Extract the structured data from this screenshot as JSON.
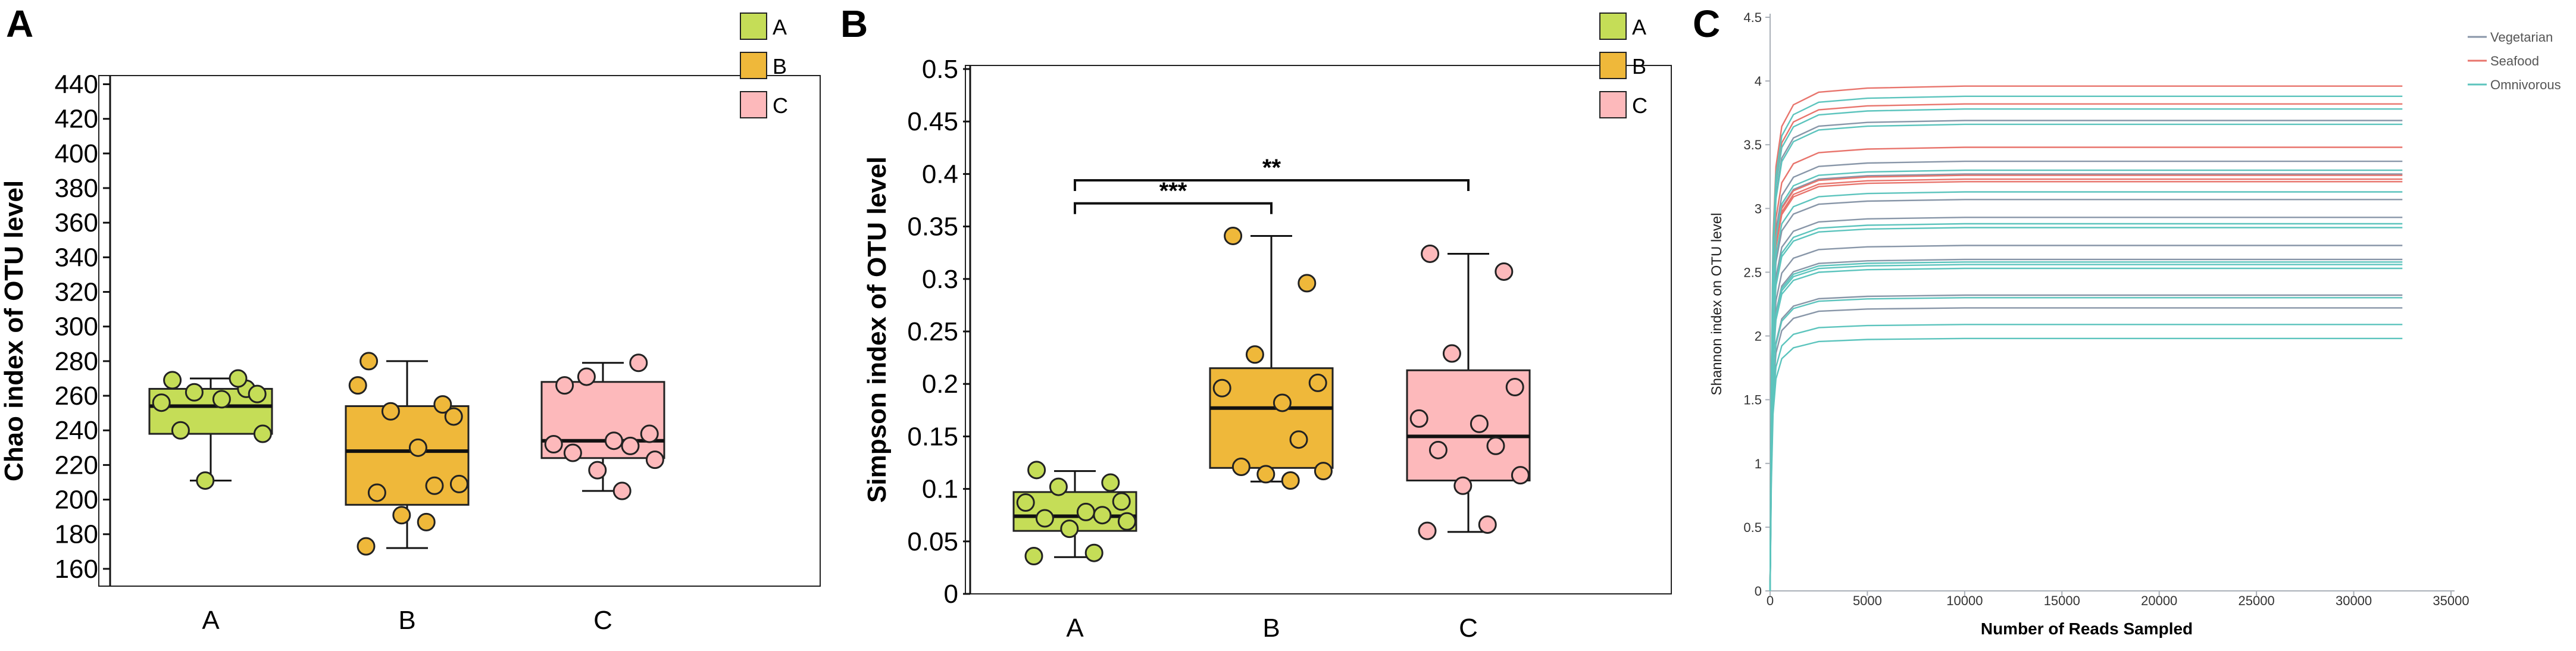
{
  "colors": {
    "A": "#c5dd57",
    "B": "#efb83a",
    "C": "#fdb9bb",
    "vegetarian": "#8896a8",
    "seafood": "#e8746c",
    "omnivorous": "#5cc4bd"
  },
  "chart_data": [
    {
      "panel": "A",
      "type": "box",
      "ylabel": "Chao index of OTU level",
      "categories": [
        "A",
        "B",
        "C"
      ],
      "yticks": [
        160,
        180,
        200,
        220,
        240,
        260,
        280,
        300,
        320,
        340,
        360,
        380,
        400,
        420,
        440
      ],
      "ylim": [
        150,
        445
      ],
      "legend": [
        "A",
        "B",
        "C"
      ],
      "legend_position": "top-right",
      "boxes": [
        {
          "group": "A",
          "whisker_low": 211,
          "q1": 238,
          "median": 254,
          "q3": 264,
          "whisker_high": 270
        },
        {
          "group": "B",
          "whisker_low": 172,
          "q1": 197,
          "median": 228,
          "q3": 254,
          "whisker_high": 280
        },
        {
          "group": "C",
          "whisker_low": 205,
          "q1": 224,
          "median": 234,
          "q3": 268,
          "whisker_high": 279
        }
      ],
      "points": {
        "A": [
          269,
          264,
          262,
          261,
          256,
          258,
          270,
          240,
          238,
          211
        ],
        "B": [
          280,
          255,
          251,
          248,
          266,
          230,
          208,
          204,
          209,
          191,
          187,
          173
        ],
        "C": [
          266,
          279,
          271,
          238,
          232,
          234,
          231,
          227,
          223,
          217,
          205
        ]
      }
    },
    {
      "panel": "B",
      "type": "box",
      "ylabel": "Simpson index of OTU level",
      "categories": [
        "A",
        "B",
        "C"
      ],
      "yticks": [
        "0",
        "0.05",
        "0.1",
        "0.15",
        "0.2",
        "0.25",
        "0.3",
        "0.35",
        "0.4",
        "0.45",
        "0.5"
      ],
      "ylim": [
        0,
        0.5
      ],
      "legend": [
        "A",
        "B",
        "C"
      ],
      "legend_position": "top-right",
      "significance": [
        {
          "from": "A",
          "to": "B",
          "label": "***",
          "y": 0.372
        },
        {
          "from": "A",
          "to": "C",
          "label": "**",
          "y": 0.394
        }
      ],
      "boxes": [
        {
          "group": "A",
          "whisker_low": 0.035,
          "q1": 0.06,
          "median": 0.074,
          "q3": 0.097,
          "whisker_high": 0.117
        },
        {
          "group": "B",
          "whisker_low": 0.107,
          "q1": 0.12,
          "median": 0.177,
          "q3": 0.215,
          "whisker_high": 0.341
        },
        {
          "group": "C",
          "whisker_low": 0.059,
          "q1": 0.108,
          "median": 0.15,
          "q3": 0.213,
          "whisker_high": 0.324
        }
      ],
      "points": {
        "A": [
          0.118,
          0.106,
          0.102,
          0.088,
          0.087,
          0.078,
          0.075,
          0.072,
          0.069,
          0.062,
          0.039,
          0.036
        ],
        "B": [
          0.341,
          0.296,
          0.228,
          0.201,
          0.196,
          0.182,
          0.147,
          0.121,
          0.117,
          0.114,
          0.108
        ],
        "C": [
          0.324,
          0.307,
          0.229,
          0.197,
          0.167,
          0.162,
          0.141,
          0.137,
          0.113,
          0.103,
          0.066,
          0.06
        ]
      }
    },
    {
      "panel": "C",
      "type": "line",
      "xlabel": "Number of Reads Sampled",
      "ylabel": "Shannon index on OTU level",
      "xlim": [
        0,
        35000
      ],
      "ylim": [
        0,
        4.5
      ],
      "xticks": [
        "0",
        "5000",
        "10000",
        "15000",
        "20000",
        "25000",
        "30000",
        "35000"
      ],
      "yticks": [
        "0",
        "0.5",
        "1",
        "1.5",
        "2",
        "2.5",
        "3",
        "3.5",
        "4",
        "4.5"
      ],
      "legend_position": "top-right",
      "x_end": 32500,
      "series": [
        {
          "name": "Vegetarian",
          "color_key": "vegetarian",
          "plateaus": [
            3.69,
            3.37,
            3.27,
            3.07,
            2.93,
            2.71,
            2.6,
            2.32,
            2.22
          ]
        },
        {
          "name": "Seafood",
          "color_key": "seafood",
          "plateaus": [
            3.96,
            3.82,
            3.48,
            3.26,
            3.23,
            3.21
          ]
        },
        {
          "name": "Omnivorous",
          "color_key": "omnivorous",
          "plateaus": [
            3.88,
            3.78,
            3.66,
            3.3,
            3.13,
            2.88,
            2.85,
            2.58,
            2.56,
            2.53,
            2.3,
            2.09,
            1.98
          ]
        }
      ]
    }
  ],
  "panel_letters": [
    "A",
    "B",
    "C"
  ]
}
